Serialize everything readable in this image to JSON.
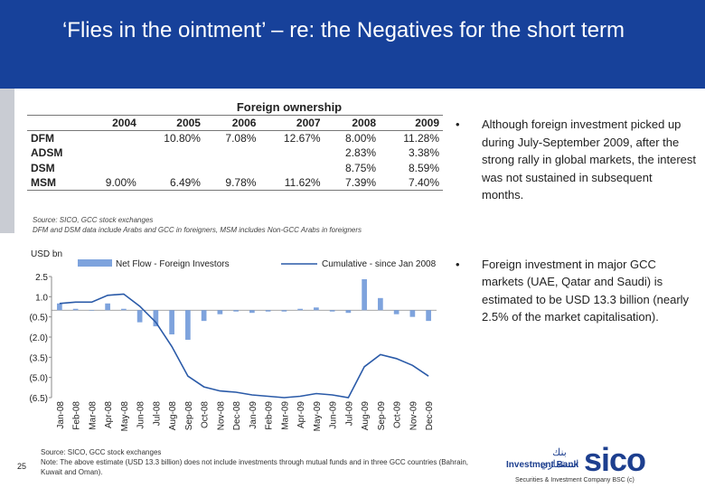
{
  "slide": {
    "title": "‘Flies in the ointment’ – re: the Negatives for   the short term",
    "number": "25"
  },
  "ownership_table": {
    "caption": "Foreign ownership",
    "columns": [
      "2004",
      "2005",
      "2006",
      "2007",
      "2008",
      "2009"
    ],
    "rows": [
      {
        "label": "DFM",
        "cells": [
          "",
          "10.80%",
          "7.08%",
          "12.67%",
          "8.00%",
          "11.28%"
        ]
      },
      {
        "label": "ADSM",
        "cells": [
          "",
          "",
          "",
          "",
          "2.83%",
          "3.38%"
        ]
      },
      {
        "label": "DSM",
        "cells": [
          "",
          "",
          "",
          "",
          "8.75%",
          "8.59%"
        ]
      },
      {
        "label": "MSM",
        "cells": [
          "9.00%",
          "6.49%",
          "9.78%",
          "11.62%",
          "7.39%",
          "7.40%"
        ]
      }
    ],
    "source_line1": "Source: SICO, GCC stock exchanges",
    "source_line2": "DFM and DSM data include Arabs and GCC in foreigners, MSM includes Non-GCC Arabs in foreigners"
  },
  "chart_data": {
    "type": "bar",
    "ylabel": "USD bn",
    "ylim": [
      -6.5,
      2.5
    ],
    "y_ticks": [
      "2.5",
      "1.0",
      "(0.5)",
      "(2.0)",
      "(3.5)",
      "(5.0)",
      "(6.5)"
    ],
    "y_tick_values": [
      2.5,
      1.0,
      -0.5,
      -2.0,
      -3.5,
      -5.0,
      -6.5
    ],
    "categories": [
      "Jan-08",
      "Feb-08",
      "Mar-08",
      "Apr-08",
      "May-08",
      "Jun-08",
      "Jul-08",
      "Aug-08",
      "Sep-08",
      "Oct-08",
      "Nov-08",
      "Dec-08",
      "Jan-09",
      "Feb-09",
      "Mar-09",
      "Apr-09",
      "May-09",
      "Jun-09",
      "Jul-09",
      "Aug-09",
      "Sep-09",
      "Oct-09",
      "Nov-09",
      "Dec-09"
    ],
    "series": [
      {
        "name": "Net Flow - Foreign Investors",
        "kind": "bar",
        "color": "#7ea3dd",
        "values": [
          0.5,
          0.1,
          0.0,
          0.5,
          0.1,
          -0.9,
          -1.2,
          -1.8,
          -2.2,
          -0.8,
          -0.3,
          -0.1,
          -0.2,
          -0.1,
          -0.1,
          0.1,
          0.2,
          -0.1,
          -0.2,
          2.3,
          0.9,
          -0.3,
          -0.5,
          -0.8
        ]
      },
      {
        "name": "Cumulative - since Jan 2008",
        "kind": "line",
        "color": "#2a5aa8",
        "values": [
          0.5,
          0.6,
          0.6,
          1.1,
          1.2,
          0.3,
          -0.9,
          -2.7,
          -4.9,
          -5.7,
          -6.0,
          -6.1,
          -6.3,
          -6.4,
          -6.5,
          -6.4,
          -6.2,
          -6.3,
          -6.5,
          -4.2,
          -3.3,
          -3.6,
          -4.1,
          -4.9
        ]
      }
    ],
    "grid": false,
    "legend": "top"
  },
  "bullets": [
    {
      "marker": "•",
      "text": "Although foreign investment picked up during July-September 2009, after the strong rally in global markets, the interest was not sustained in subsequent months."
    },
    {
      "marker": "•",
      "text": "Foreign investment in major GCC markets (UAE, Qatar and Saudi) is estimated to be USD 13.3 billion (nearly 2.5% of the market capitalisation)."
    }
  ],
  "footer": {
    "source_line1": "Source: SICO, GCC stock exchanges",
    "note_line": "Note: The above estimate (USD 13.3 billion) does not include investments through mutual funds and in three GCC countries (Bahrain, Kuwait and Oman).",
    "company": "Securities & Investment Company BSC (c)"
  },
  "logo": {
    "arabic": "بنك استثماري",
    "investment_bank": "Investment Bank",
    "brand": "sico"
  },
  "colors": {
    "title_band": "#17419a",
    "bar": "#7ea3dd",
    "line": "#2a5aa8",
    "logo": "#1d3f8f"
  }
}
